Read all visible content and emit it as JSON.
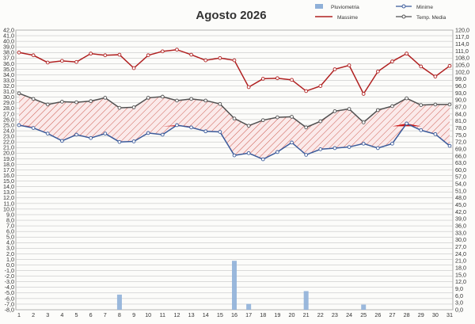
{
  "chart_data": {
    "type": "line",
    "title": "Agosto 2026",
    "x": [
      1,
      2,
      3,
      4,
      5,
      6,
      7,
      8,
      9,
      10,
      11,
      12,
      13,
      14,
      15,
      16,
      17,
      18,
      19,
      20,
      21,
      22,
      23,
      24,
      25,
      26,
      27,
      28,
      29,
      30,
      31
    ],
    "left_axis": {
      "min": -8,
      "max": 42,
      "step": 1
    },
    "right_axis": {
      "min": 0,
      "max": 120,
      "step": 3
    },
    "series": [
      {
        "name": "Massime",
        "axis": "left",
        "color": "#b02020",
        "values": [
          38.0,
          37.5,
          36.2,
          36.5,
          36.3,
          37.8,
          37.5,
          37.6,
          35.2,
          37.5,
          38.2,
          38.5,
          37.6,
          36.6,
          37.0,
          36.6,
          31.8,
          33.3,
          33.4,
          33.1,
          31.1,
          32.0,
          35.0,
          35.7,
          30.6,
          34.6,
          36.4,
          37.8,
          35.5,
          33.7,
          35.6
        ]
      },
      {
        "name": "Minime",
        "axis": "left",
        "color": "#3a5a9a",
        "values": [
          25.0,
          24.5,
          23.5,
          22.2,
          23.3,
          22.7,
          23.5,
          22.0,
          22.1,
          23.6,
          23.3,
          25.0,
          24.6,
          23.9,
          23.8,
          19.6,
          20.0,
          18.9,
          20.2,
          21.9,
          19.7,
          20.7,
          20.9,
          21.1,
          21.7,
          20.9,
          21.7,
          25.3,
          24.1,
          23.4,
          21.3
        ]
      },
      {
        "name": "Temp. Media",
        "axis": "left",
        "color": "#505050",
        "values": [
          30.7,
          29.7,
          28.7,
          29.2,
          29.1,
          29.3,
          29.9,
          28.1,
          28.2,
          29.9,
          30.1,
          29.4,
          29.7,
          29.4,
          28.8,
          26.2,
          24.9,
          25.9,
          26.4,
          26.5,
          24.6,
          25.7,
          27.5,
          27.9,
          25.5,
          27.7,
          28.4,
          29.8,
          28.6,
          28.7,
          28.7
        ]
      },
      {
        "name": "Pluviometria",
        "axis": "right",
        "color": "#8fb0d8",
        "values": [
          0,
          0,
          0,
          0,
          0,
          0,
          0,
          6.5,
          0,
          0,
          0,
          0,
          0,
          0,
          0,
          21.0,
          2.5,
          0,
          0,
          0,
          8.0,
          0,
          0,
          0,
          2.2,
          0,
          0,
          0,
          0,
          0,
          0
        ]
      }
    ],
    "legend_position": "top-right",
    "grid": true
  }
}
